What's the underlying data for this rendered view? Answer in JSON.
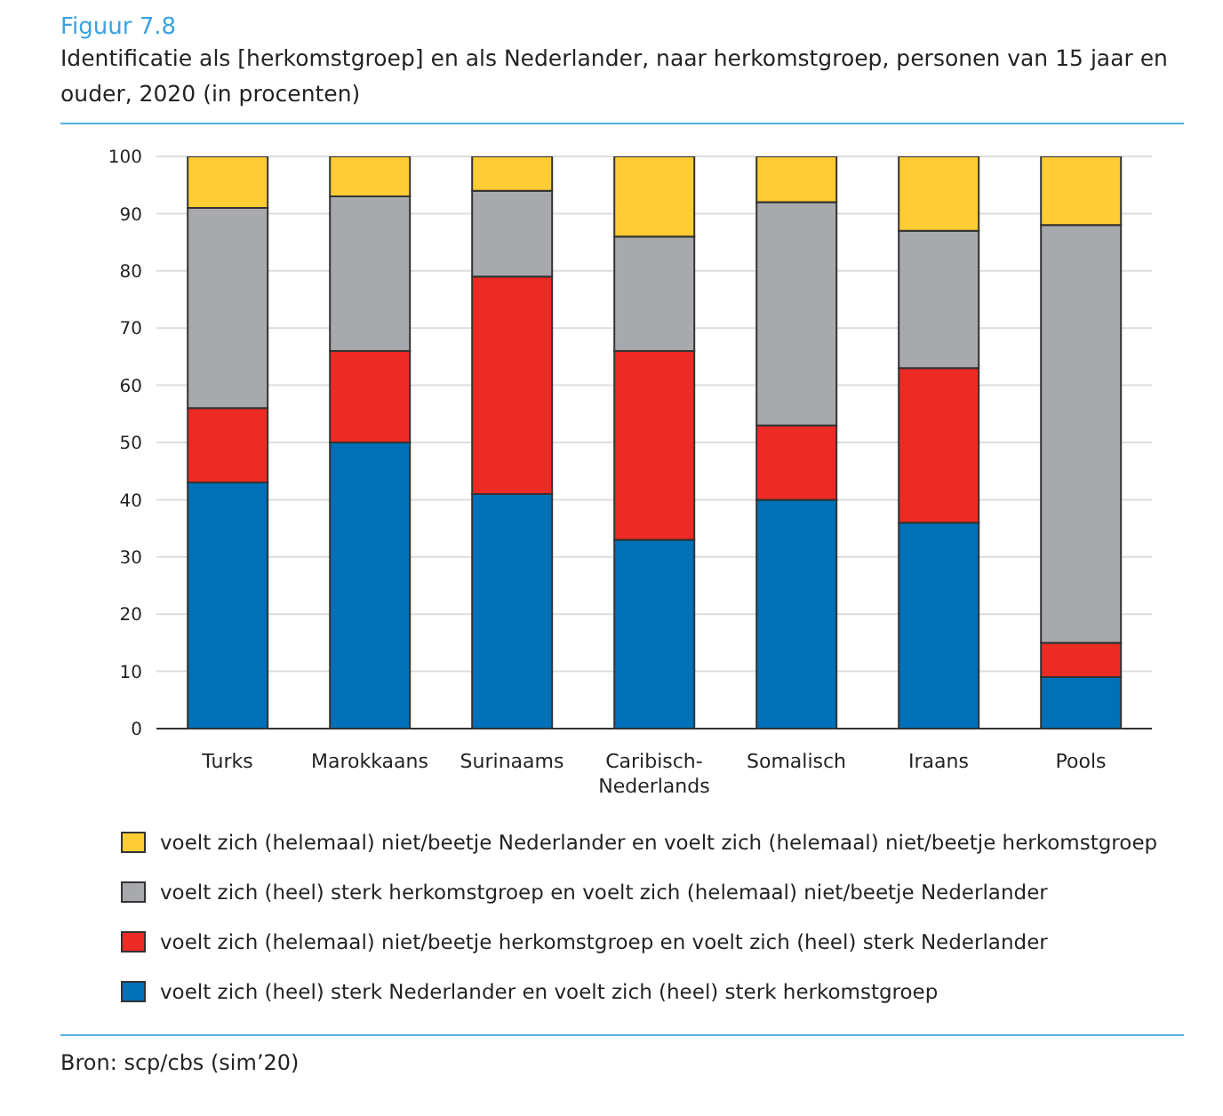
{
  "chart_data": {
    "type": "bar",
    "stacked": true,
    "title": "Figuur 7.8",
    "subtitle": "Identificatie als [herkomstgroep] en als Nederlander, naar herkomstgroep, personen van 15 jaar en ouder, 2020 (in procenten)",
    "categories": [
      "Turks",
      "Marokkaans",
      "Surinaams",
      "Caribisch-Nederlands",
      "Somalisch",
      "Iraans",
      "Pools"
    ],
    "series": [
      {
        "name": "voelt zich (heel) sterk Nederlander en voelt zich (heel) sterk herkomstgroep",
        "color": "#0070b8",
        "values": [
          43,
          50,
          41,
          33,
          40,
          36,
          9
        ]
      },
      {
        "name": "voelt zich (helemaal) niet/beetje herkomstgroep en voelt zich (heel) sterk Nederlander",
        "color": "#ee2a24",
        "values": [
          13,
          16,
          38,
          33,
          13,
          27,
          6
        ]
      },
      {
        "name": "voelt zich (heel) sterk herkomstgroep en voelt zich (helemaal) niet/beetje Nederlander",
        "color": "#a8a9ad",
        "values": [
          35,
          27,
          15,
          20,
          39,
          24,
          73
        ]
      },
      {
        "name": "voelt zich (helemaal) niet/beetje Nederlander en voelt zich (helemaal) niet/beetje herkomstgroep",
        "color": "#fecc33",
        "values": [
          9,
          7,
          6,
          14,
          8,
          13,
          12
        ]
      }
    ],
    "ylim": [
      0,
      100
    ],
    "yticks": [
      0,
      10,
      20,
      30,
      40,
      50,
      60,
      70,
      80,
      90,
      100
    ],
    "grid": "y",
    "legend": "bottom",
    "annotations": [
      "Bron: scp/cbs (sim’20)"
    ]
  }
}
